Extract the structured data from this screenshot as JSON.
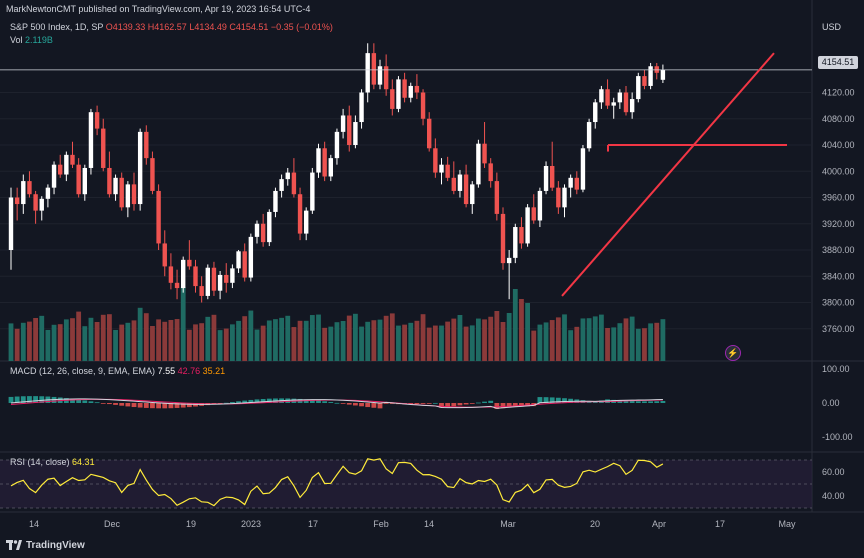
{
  "header": {
    "published": "MarkNewtonCMT published on TradingView.com, Apr 19, 2023 16:54 UTC-4",
    "symbol": "S&P 500 Index, 1D, SP",
    "ohlc": "O4139.33  H4162.57  L4134.49  C4154.51  −0.35 (−0.01%)",
    "vol_label": "Vol",
    "vol_value": "2.119B",
    "currency": "USD"
  },
  "last_price": "4154.51",
  "macd_legend": {
    "label": "MACD (12, 26, close, 9, EMA, EMA)",
    "v1": "7.55",
    "v2": "42.76",
    "v3": "35.21"
  },
  "rsi_legend": {
    "label": "RSI (14, close)",
    "value": "64.31"
  },
  "brand": "TradingView",
  "colors": {
    "up": "#26a69a",
    "down": "#ef5350",
    "trendline": "#f23645",
    "macd_line": "#ffffff",
    "signal_line": "#e91e63",
    "rsi_line": "#ffeb3b",
    "background": "#131722"
  },
  "chart_data": [
    {
      "type": "candlestick",
      "title": "S&P 500 Index, 1D",
      "price_axis_ticks": [
        3760,
        3800,
        3840,
        3880,
        3920,
        3960,
        4000,
        4040,
        4080,
        4120
      ],
      "last_price": 4154.51,
      "time_axis_labels": [
        "14",
        "Dec",
        "19",
        "2023",
        "17",
        "Feb",
        "14",
        "Mar",
        "20",
        "Apr",
        "17",
        "May"
      ],
      "ohlc": [
        [
          3880,
          3975,
          3850,
          3960
        ],
        [
          3960,
          3975,
          3925,
          3950
        ],
        [
          3950,
          3995,
          3935,
          3985
        ],
        [
          3985,
          4000,
          3960,
          3965
        ],
        [
          3965,
          3970,
          3920,
          3940
        ],
        [
          3940,
          3962,
          3925,
          3958
        ],
        [
          3958,
          3980,
          3945,
          3975
        ],
        [
          3975,
          4015,
          3965,
          4010
        ],
        [
          4010,
          4025,
          3990,
          3995
        ],
        [
          3995,
          4030,
          3985,
          4025
        ],
        [
          4025,
          4045,
          4005,
          4010
        ],
        [
          4010,
          4020,
          3960,
          3965
        ],
        [
          3965,
          4010,
          3955,
          4005
        ],
        [
          4005,
          4095,
          3995,
          4090
        ],
        [
          4090,
          4100,
          4055,
          4065
        ],
        [
          4065,
          4080,
          4000,
          4005
        ],
        [
          4005,
          4030,
          3960,
          3965
        ],
        [
          3965,
          3995,
          3955,
          3990
        ],
        [
          3990,
          3998,
          3940,
          3945
        ],
        [
          3945,
          3985,
          3930,
          3980
        ],
        [
          3980,
          3998,
          3940,
          3950
        ],
        [
          3950,
          4065,
          3940,
          4060
        ],
        [
          4060,
          4070,
          4010,
          4020
        ],
        [
          4020,
          4030,
          3965,
          3970
        ],
        [
          3970,
          3980,
          3880,
          3890
        ],
        [
          3890,
          3910,
          3840,
          3855
        ],
        [
          3855,
          3875,
          3820,
          3830
        ],
        [
          3830,
          3850,
          3805,
          3822
        ],
        [
          3822,
          3870,
          3815,
          3865
        ],
        [
          3865,
          3895,
          3850,
          3855
        ],
        [
          3855,
          3865,
          3815,
          3825
        ],
        [
          3825,
          3840,
          3800,
          3810
        ],
        [
          3810,
          3858,
          3805,
          3853
        ],
        [
          3853,
          3862,
          3810,
          3818
        ],
        [
          3818,
          3848,
          3805,
          3842
        ],
        [
          3842,
          3860,
          3815,
          3830
        ],
        [
          3830,
          3858,
          3822,
          3852
        ],
        [
          3852,
          3880,
          3845,
          3878
        ],
        [
          3878,
          3890,
          3832,
          3838
        ],
        [
          3838,
          3905,
          3832,
          3900
        ],
        [
          3900,
          3925,
          3890,
          3920
        ],
        [
          3920,
          3935,
          3885,
          3892
        ],
        [
          3892,
          3942,
          3886,
          3938
        ],
        [
          3938,
          3975,
          3930,
          3970
        ],
        [
          3970,
          3995,
          3960,
          3988
        ],
        [
          3988,
          4005,
          3978,
          3998
        ],
        [
          3998,
          4020,
          3960,
          3965
        ],
        [
          3965,
          3975,
          3895,
          3905
        ],
        [
          3905,
          3945,
          3895,
          3940
        ],
        [
          3940,
          4005,
          3935,
          3998
        ],
        [
          3998,
          4042,
          3990,
          4035
        ],
        [
          4035,
          4045,
          3985,
          3992
        ],
        [
          3992,
          4025,
          3985,
          4020
        ],
        [
          4020,
          4065,
          4010,
          4060
        ],
        [
          4060,
          4095,
          4050,
          4085
        ],
        [
          4085,
          4100,
          4030,
          4040
        ],
        [
          4040,
          4085,
          4035,
          4075
        ],
        [
          4075,
          4125,
          4065,
          4120
        ],
        [
          4120,
          4195,
          4105,
          4180
        ],
        [
          4180,
          4195,
          4125,
          4132
        ],
        [
          4132,
          4170,
          4125,
          4160
        ],
        [
          4160,
          4178,
          4115,
          4125
        ],
        [
          4125,
          4140,
          4085,
          4095
        ],
        [
          4095,
          4145,
          4090,
          4140
        ],
        [
          4140,
          4150,
          4105,
          4112
        ],
        [
          4112,
          4135,
          4105,
          4130
        ],
        [
          4130,
          4148,
          4110,
          4120
        ],
        [
          4120,
          4125,
          4070,
          4080
        ],
        [
          4080,
          4090,
          4030,
          4035
        ],
        [
          4035,
          4050,
          3990,
          3998
        ],
        [
          3998,
          4020,
          3980,
          4010
        ],
        [
          4010,
          4022,
          3985,
          3990
        ],
        [
          3990,
          4015,
          3965,
          3970
        ],
        [
          3970,
          4002,
          3960,
          3995
        ],
        [
          3995,
          4010,
          3945,
          3950
        ],
        [
          3950,
          3985,
          3935,
          3980
        ],
        [
          3980,
          4048,
          3975,
          4042
        ],
        [
          4042,
          4075,
          4005,
          4012
        ],
        [
          4012,
          4020,
          3975,
          3985
        ],
        [
          3985,
          3998,
          3925,
          3935
        ],
        [
          3935,
          3945,
          3850,
          3860
        ],
        [
          3860,
          3880,
          3805,
          3868
        ],
        [
          3868,
          3920,
          3860,
          3915
        ],
        [
          3915,
          3930,
          3882,
          3890
        ],
        [
          3890,
          3950,
          3885,
          3945
        ],
        [
          3945,
          3965,
          3920,
          3925
        ],
        [
          3925,
          3975,
          3915,
          3970
        ],
        [
          3970,
          4015,
          3965,
          4008
        ],
        [
          4008,
          4045,
          3970,
          3975
        ],
        [
          3975,
          3985,
          3935,
          3945
        ],
        [
          3945,
          3980,
          3930,
          3975
        ],
        [
          3975,
          3995,
          3960,
          3990
        ],
        [
          3990,
          4000,
          3965,
          3972
        ],
        [
          3972,
          4040,
          3968,
          4035
        ],
        [
          4035,
          4080,
          4030,
          4075
        ],
        [
          4075,
          4110,
          4065,
          4105
        ],
        [
          4105,
          4130,
          4095,
          4125
        ],
        [
          4125,
          4140,
          4095,
          4100
        ],
        [
          4100,
          4112,
          4080,
          4105
        ],
        [
          4105,
          4125,
          4095,
          4120
        ],
        [
          4120,
          4130,
          4085,
          4090
        ],
        [
          4090,
          4120,
          4080,
          4110
        ],
        [
          4110,
          4150,
          4105,
          4145
        ],
        [
          4145,
          4155,
          4125,
          4130
        ],
        [
          4130,
          4165,
          4125,
          4160
        ],
        [
          4160,
          4165,
          4140,
          4150
        ],
        [
          4139.33,
          4162.57,
          4134.49,
          4154.51
        ]
      ],
      "volume_direction": "colored by candle direction",
      "annotations": [
        {
          "type": "horizontal_line",
          "price": 4154.51,
          "style": "thin white"
        },
        {
          "type": "horizontal_segment",
          "price": 4040,
          "color": "#f23645"
        },
        {
          "type": "trendline",
          "from_price": 3800,
          "to_price": 4180,
          "color": "#f23645"
        }
      ]
    },
    {
      "type": "histogram",
      "title": "MACD (12, 26, close, 9, EMA, EMA)",
      "axis_ticks": [
        100.0,
        0.0,
        -100.0
      ],
      "values": [
        7.55,
        42.76,
        35.21
      ]
    },
    {
      "type": "line",
      "title": "RSI (14, close)",
      "axis_ticks": [
        60.0,
        40.0
      ],
      "values": [
        64.31
      ]
    }
  ]
}
